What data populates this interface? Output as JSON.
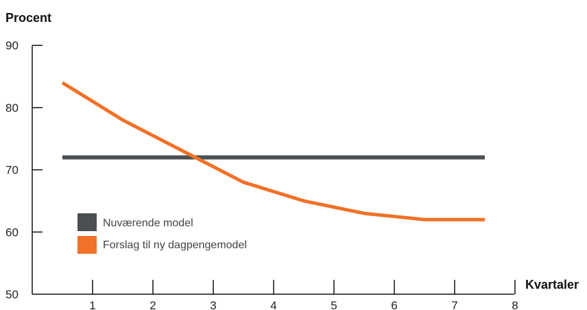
{
  "chart_data": {
    "type": "line",
    "ylabel": "Procent",
    "xlabel": "Kvartaler",
    "ylim": [
      50,
      90
    ],
    "yticks": [
      50,
      60,
      70,
      80,
      90
    ],
    "xticks": [
      1,
      2,
      3,
      4,
      5,
      6,
      7,
      8
    ],
    "x": [
      0.5,
      1.5,
      2.5,
      3.5,
      4.5,
      5.5,
      6.5,
      7.5
    ],
    "series": [
      {
        "name": "Nuværende model",
        "color": "#4a4f52",
        "values": [
          72,
          72,
          72,
          72,
          72,
          72,
          72,
          72
        ]
      },
      {
        "name": "Forslag til ny dagpengemodel",
        "color": "#f07127",
        "values": [
          84,
          78,
          73,
          68,
          65,
          63,
          62,
          62
        ]
      }
    ],
    "grid": false,
    "legend_position": "lower-left"
  }
}
